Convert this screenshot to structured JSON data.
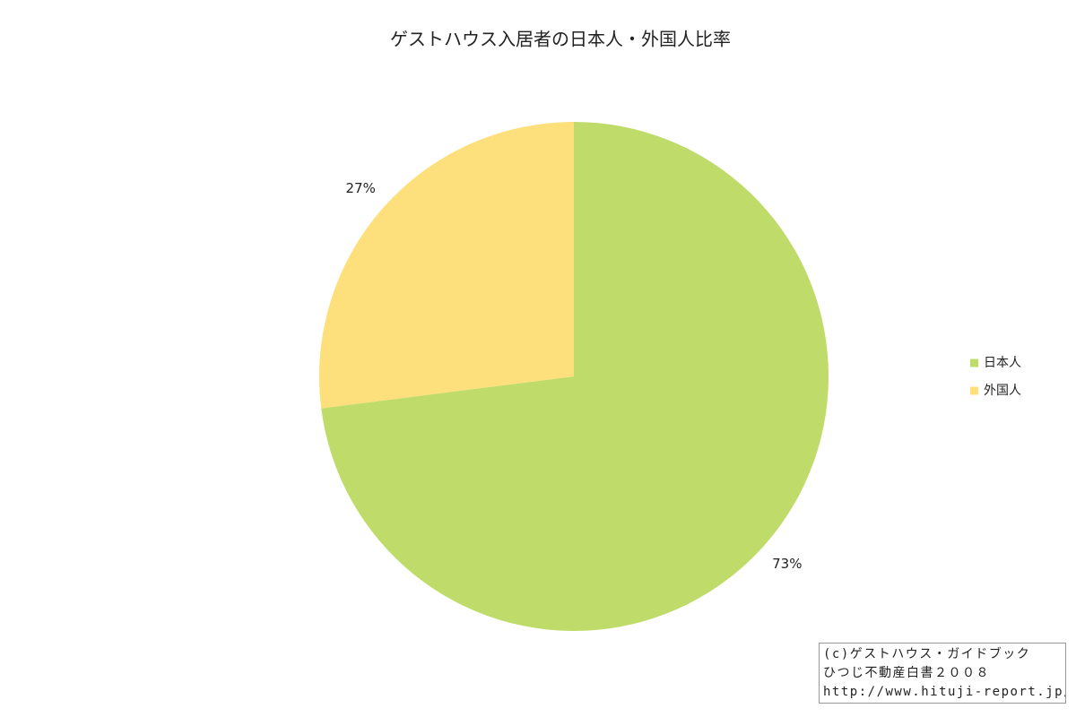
{
  "chart_data": {
    "type": "pie",
    "title": "ゲストハウス入居者の日本人・外国人比率",
    "categories": [
      "日本人",
      "外国人"
    ],
    "values": [
      73,
      27
    ],
    "value_labels": [
      "73%",
      "27%"
    ],
    "colors": [
      "#bfdc6a",
      "#fde07c"
    ],
    "legend": "right",
    "credit": [
      "(c)ゲストハウス・ガイドブック",
      "ひつじ不動産白書２００８",
      "http://www.hituji-report.jp/"
    ]
  }
}
